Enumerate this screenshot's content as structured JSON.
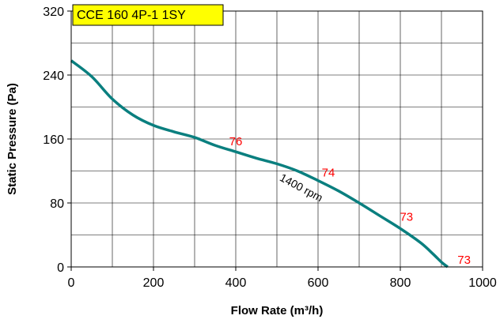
{
  "chart_data": {
    "type": "line",
    "title": "CCE 160 4P-1 1SY",
    "xlabel": "Flow Rate (m³/h)",
    "ylabel": "Static Pressure (Pa)",
    "xlim": [
      0,
      1000
    ],
    "ylim": [
      0,
      320
    ],
    "x_ticks": [
      0,
      200,
      400,
      600,
      800,
      1000
    ],
    "y_ticks": [
      0,
      80,
      160,
      240,
      320
    ],
    "x_tick_labels": [
      "0",
      "200",
      "400",
      "600",
      "800",
      "1000"
    ],
    "y_tick_labels": [
      "0",
      "80",
      "160",
      "240",
      "320"
    ],
    "grid": true,
    "series": [
      {
        "name": "1400 rpm",
        "color": "#0a7f7f",
        "x": [
          0,
          50,
          100,
          150,
          200,
          250,
          300,
          350,
          400,
          450,
          500,
          550,
          600,
          650,
          700,
          750,
          800,
          850,
          880,
          900,
          915
        ],
        "y": [
          258,
          238,
          210,
          190,
          177,
          169,
          162,
          152,
          144,
          136,
          129,
          120,
          108,
          95,
          80,
          64,
          48,
          30,
          16,
          6,
          0
        ]
      }
    ],
    "annotations": [
      {
        "text": "76",
        "x": 400,
        "y": 152,
        "color": "#ff0000"
      },
      {
        "text": "74",
        "x": 625,
        "y": 113,
        "color": "#ff0000"
      },
      {
        "text": "73",
        "x": 815,
        "y": 58,
        "color": "#ff0000"
      },
      {
        "text": "73",
        "x": 955,
        "y": 4,
        "color": "#ff0000"
      }
    ],
    "rpm_label": {
      "text": "1400 rpm",
      "x": 555,
      "y": 95
    },
    "title_box_fill": "#ffff00"
  }
}
